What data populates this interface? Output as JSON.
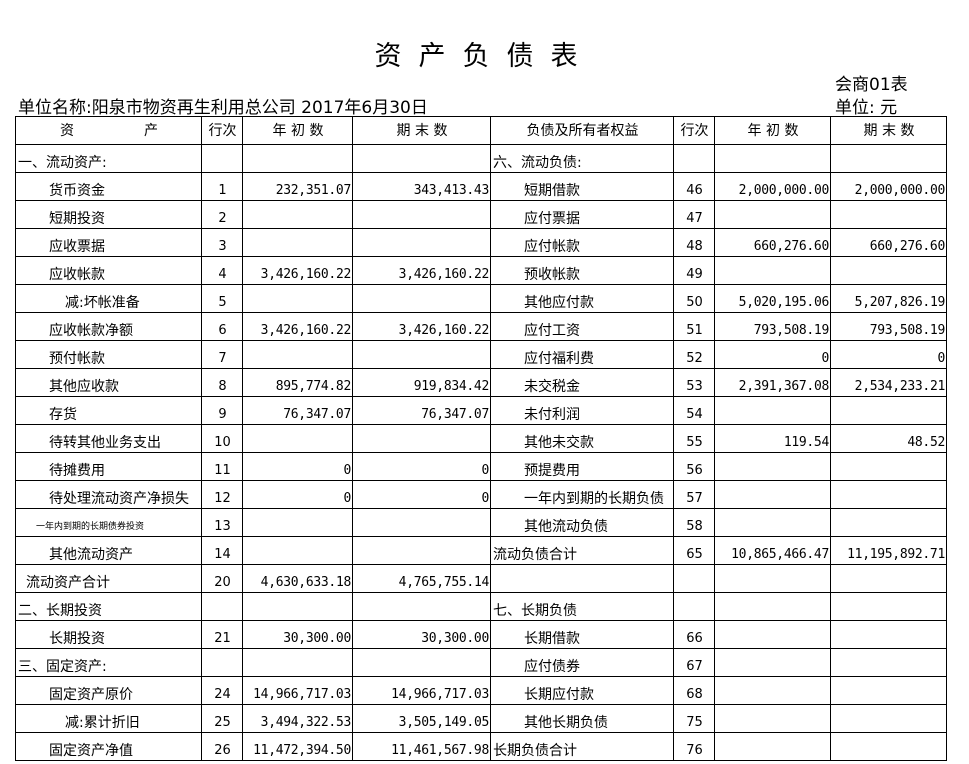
{
  "title": "资产负债表",
  "form_no": "会商01表",
  "unit_name": "单位名称:阳泉市物资再生利用总公司 2017年6月30日",
  "unit": "单位: 元",
  "headers": [
    "资　　　　　产",
    "行次",
    "年 初 数",
    "期 末 数",
    "负债及所有者权益",
    "行次",
    "年 初 数",
    "期 末 数"
  ],
  "rows": [
    {
      "l": [
        "一、流动资产:",
        "",
        "",
        ""
      ],
      "li": "l0",
      "r": [
        "六、流动负债:",
        "",
        "",
        ""
      ],
      "ri": "l0"
    },
    {
      "l": [
        "货币资金",
        "1",
        "232,351.07",
        "343,413.43"
      ],
      "li": "l1",
      "r": [
        "短期借款",
        "46",
        "2,000,000.00",
        "2,000,000.00"
      ],
      "ri": "l1"
    },
    {
      "l": [
        "短期投资",
        "2",
        "",
        ""
      ],
      "li": "l1",
      "r": [
        "应付票据",
        "47",
        "",
        ""
      ],
      "ri": "l1"
    },
    {
      "l": [
        "应收票据",
        "3",
        "",
        ""
      ],
      "li": "l1",
      "r": [
        "应付帐款",
        "48",
        "660,276.60",
        "660,276.60"
      ],
      "ri": "l1"
    },
    {
      "l": [
        "应收帐款",
        "4",
        "3,426,160.22",
        "3,426,160.22"
      ],
      "li": "l1",
      "r": [
        "预收帐款",
        "49",
        "",
        ""
      ],
      "ri": "l1"
    },
    {
      "l": [
        "减:坏帐准备",
        "5",
        "",
        ""
      ],
      "li": "l2",
      "r": [
        "其他应付款",
        "50",
        "5,020,195.06",
        "5,207,826.19"
      ],
      "ri": "l1"
    },
    {
      "l": [
        "应收帐款净额",
        "6",
        "3,426,160.22",
        "3,426,160.22"
      ],
      "li": "l1",
      "r": [
        "应付工资",
        "51",
        "793,508.19",
        "793,508.19"
      ],
      "ri": "l1"
    },
    {
      "l": [
        "预付帐款",
        "7",
        "",
        ""
      ],
      "li": "l1",
      "r": [
        "应付福利费",
        "52",
        "0",
        "0"
      ],
      "ri": "l1"
    },
    {
      "l": [
        "其他应收款",
        "8",
        "895,774.82",
        "919,834.42"
      ],
      "li": "l1",
      "r": [
        "未交税金",
        "53",
        "2,391,367.08",
        "2,534,233.21"
      ],
      "ri": "l1"
    },
    {
      "l": [
        "存货",
        "9",
        "76,347.07",
        "76,347.07"
      ],
      "li": "l1",
      "r": [
        "未付利润",
        "54",
        "",
        ""
      ],
      "ri": "l1"
    },
    {
      "l": [
        "待转其他业务支出",
        "10",
        "",
        ""
      ],
      "li": "l1",
      "r": [
        "其他未交款",
        "55",
        "119.54",
        "48.52"
      ],
      "ri": "l1"
    },
    {
      "l": [
        "待摊费用",
        "11",
        "0",
        "0"
      ],
      "li": "l1",
      "r": [
        "预提费用",
        "56",
        "",
        ""
      ],
      "ri": "l1"
    },
    {
      "l": [
        "待处理流动资产净损失",
        "12",
        "0",
        "0"
      ],
      "li": "l1",
      "r": [
        "一年内到期的长期负债",
        "57",
        "",
        ""
      ],
      "ri": "l1"
    },
    {
      "l": [
        "一年内到期的长期债券投资",
        "13",
        "",
        ""
      ],
      "li": "tiny",
      "r": [
        "其他流动负债",
        "58",
        "",
        ""
      ],
      "ri": "l1"
    },
    {
      "l": [
        "其他流动资产",
        "14",
        "",
        ""
      ],
      "li": "l1",
      "r": [
        "流动负债合计",
        "65",
        "10,865,466.47",
        "11,195,892.71"
      ],
      "ri": "l0"
    },
    {
      "l": [
        "流动资产合计",
        "20",
        "4,630,633.18",
        "4,765,755.14"
      ],
      "li": "lt",
      "r": [
        "",
        "",
        "",
        ""
      ],
      "ri": "l0"
    },
    {
      "l": [
        "二、长期投资",
        "",
        "",
        ""
      ],
      "li": "l0",
      "r": [
        "七、长期负债",
        "",
        "",
        ""
      ],
      "ri": "l0"
    },
    {
      "l": [
        "长期投资",
        "21",
        "30,300.00",
        "30,300.00"
      ],
      "li": "l1",
      "r": [
        "长期借款",
        "66",
        "",
        ""
      ],
      "ri": "l1"
    },
    {
      "l": [
        "三、固定资产:",
        "",
        "",
        ""
      ],
      "li": "l0",
      "r": [
        "应付债券",
        "67",
        "",
        ""
      ],
      "ri": "l1"
    },
    {
      "l": [
        "固定资产原价",
        "24",
        "14,966,717.03",
        "14,966,717.03"
      ],
      "li": "l1",
      "r": [
        "长期应付款",
        "68",
        "",
        ""
      ],
      "ri": "l1"
    },
    {
      "l": [
        "减:累计折旧",
        "25",
        "3,494,322.53",
        "3,505,149.05"
      ],
      "li": "l2",
      "r": [
        "其他长期负债",
        "75",
        "",
        ""
      ],
      "ri": "l1"
    },
    {
      "l": [
        "固定资产净值",
        "26",
        "11,472,394.50",
        "11,461,567.98"
      ],
      "li": "l1",
      "r": [
        "长期负债合计",
        "76",
        "",
        ""
      ],
      "ri": "l0"
    }
  ]
}
